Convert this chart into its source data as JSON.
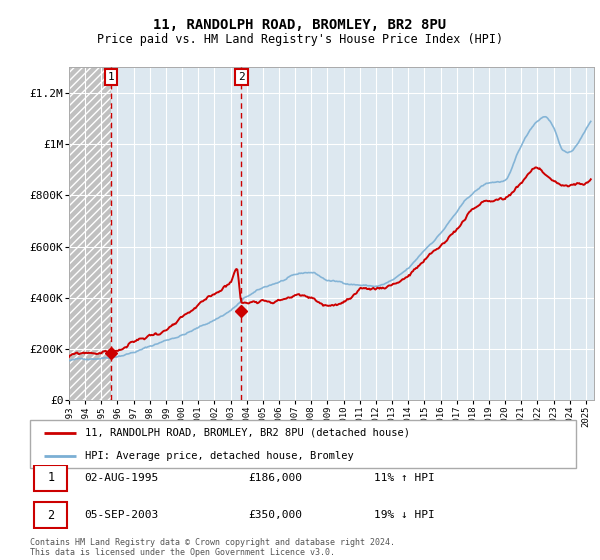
{
  "title": "11, RANDOLPH ROAD, BROMLEY, BR2 8PU",
  "subtitle": "Price paid vs. HM Land Registry's House Price Index (HPI)",
  "background_color": "#ffffff",
  "plot_bg_color": "#dde8f0",
  "hatch_bg_color": "#c8c8c8",
  "red_line_color": "#cc0000",
  "blue_line_color": "#7bafd4",
  "marker_color": "#cc0000",
  "dashed_line_color": "#cc0000",
  "sale1_year": 1995.58,
  "sale1_price": 186000,
  "sale1_label": "1",
  "sale2_year": 2003.67,
  "sale2_price": 350000,
  "sale2_label": "2",
  "legend_entry1": "11, RANDOLPH ROAD, BROMLEY, BR2 8PU (detached house)",
  "legend_entry2": "HPI: Average price, detached house, Bromley",
  "table_row1": [
    "1",
    "02-AUG-1995",
    "£186,000",
    "11% ↑ HPI"
  ],
  "table_row2": [
    "2",
    "05-SEP-2003",
    "£350,000",
    "19% ↓ HPI"
  ],
  "footnote": "Contains HM Land Registry data © Crown copyright and database right 2024.\nThis data is licensed under the Open Government Licence v3.0.",
  "ylim": [
    0,
    1300000
  ],
  "yticks": [
    0,
    200000,
    400000,
    600000,
    800000,
    1000000,
    1200000
  ],
  "ytick_labels": [
    "£0",
    "£200K",
    "£400K",
    "£600K",
    "£800K",
    "£1M",
    "£1.2M"
  ],
  "xlim_start": 1993,
  "xlim_end": 2025.5
}
